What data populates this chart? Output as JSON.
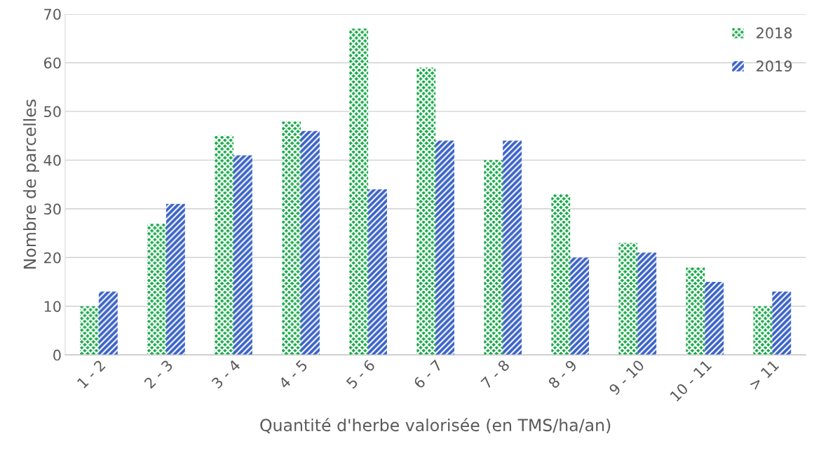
{
  "chart_data": {
    "type": "bar",
    "xlabel": "Quantité d'herbe valorisée (en TMS/ha/an)",
    "ylabel": "Nombre de parcelles",
    "categories": [
      "1 - 2",
      "2 - 3",
      "3 - 4",
      "4 - 5",
      "5 - 6",
      "6 - 7",
      "7 - 8",
      "8 - 9",
      "9 - 10",
      "10 - 11",
      "> 11"
    ],
    "series": [
      {
        "name": "2018",
        "color": "#1aa84a",
        "values": [
          10,
          27,
          45,
          48,
          67,
          59,
          40,
          33,
          23,
          18,
          10
        ]
      },
      {
        "name": "2019",
        "color": "#3a62c8",
        "values": [
          13,
          31,
          41,
          46,
          34,
          44,
          44,
          20,
          21,
          15,
          13
        ]
      }
    ],
    "ylim": [
      0,
      70
    ],
    "yticks": [
      0,
      10,
      20,
      30,
      40,
      50,
      60,
      70
    ],
    "grid": "y",
    "legend": "top right"
  }
}
